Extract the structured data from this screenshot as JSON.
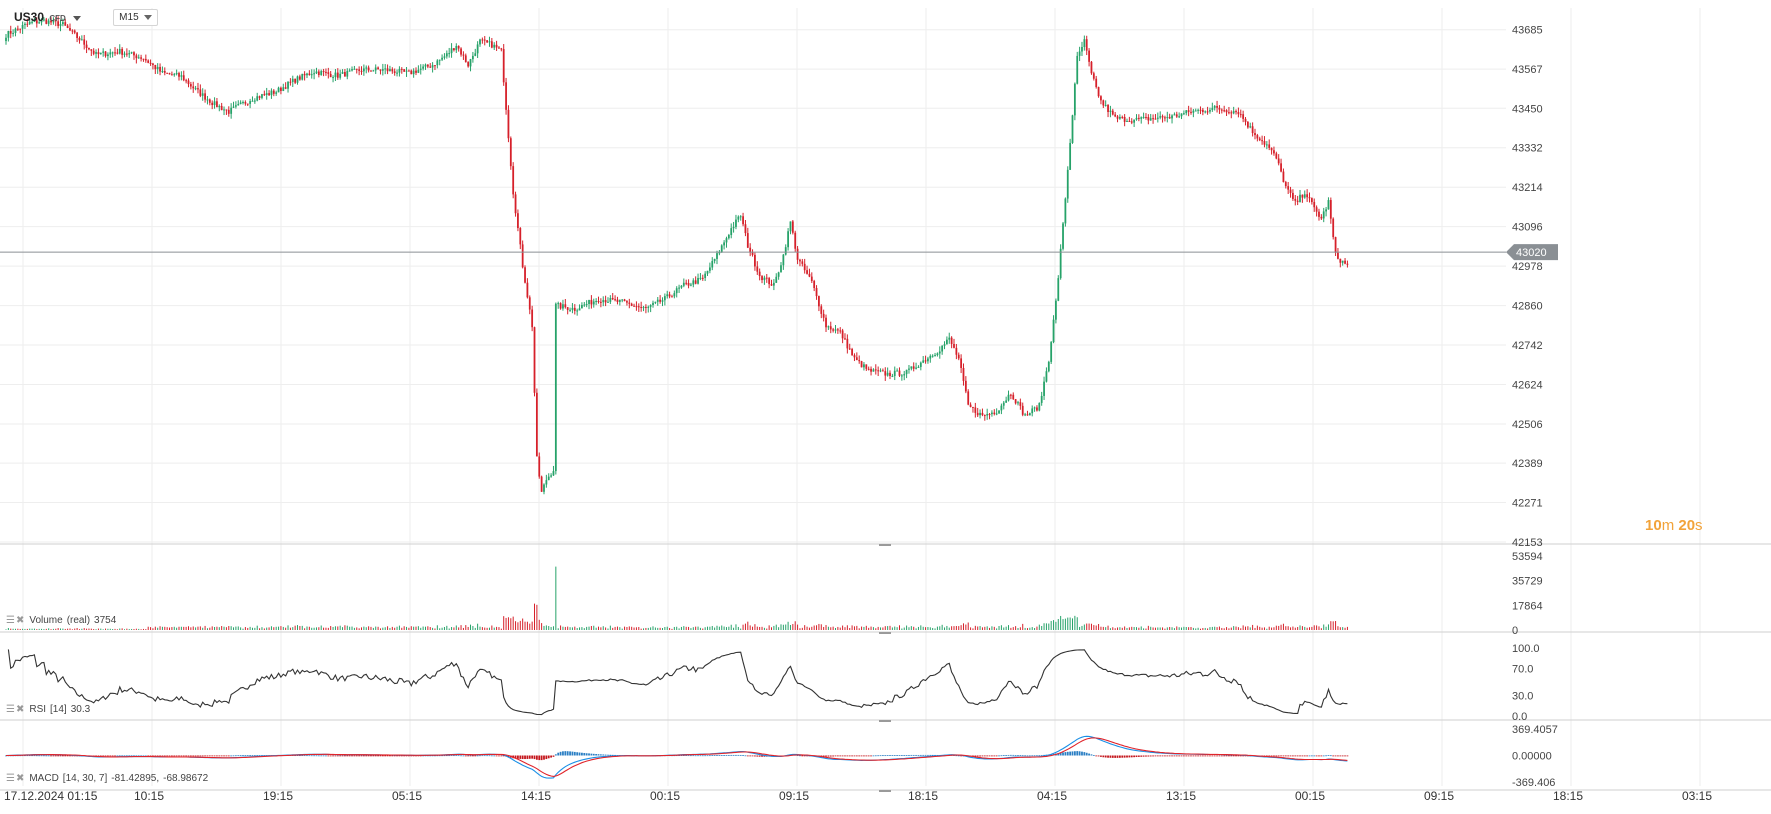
{
  "header": {
    "symbol": "US30",
    "symbol_type": "CFD",
    "timeframe": "M15"
  },
  "countdown": {
    "minutes": "10",
    "minutes_unit": "m",
    "seconds": "20",
    "seconds_unit": "s"
  },
  "panels": {
    "volume": {
      "name": "Volume",
      "param": "(real)",
      "value": "3754"
    },
    "rsi": {
      "name": "RSI",
      "param": "[14]",
      "value": "30.3"
    },
    "macd": {
      "name": "MACD",
      "param": "[14, 30, 7]",
      "value1": "-81.42895,",
      "value2": "-68.98672"
    }
  },
  "colors": {
    "up": "#26a269",
    "down": "#d6202a",
    "grid": "#eeeeee",
    "price_line": "#8a8f94",
    "price_tag": "#8a8f94",
    "rsi_line": "#333333",
    "macd_line": "#1a8fe6",
    "signal_line": "#e0242b",
    "hist_up": "#2b7fc4",
    "hist_down": "#c4161c"
  },
  "chart_data": {
    "type": "candlestick",
    "price_axis": {
      "ticks": [
        "43685",
        "43567",
        "43450",
        "43332",
        "43214",
        "43096",
        "42978",
        "42860",
        "42742",
        "42624",
        "42506",
        "42389",
        "42271",
        "42153"
      ],
      "ylim": [
        42153,
        43720
      ]
    },
    "current_price": 43020,
    "time_axis": {
      "labels": [
        "17.12.2024  01:15",
        "10:15",
        "19:15",
        "05:15",
        "14:15",
        "00:15",
        "09:15",
        "18:15",
        "04:15",
        "13:15",
        "00:15",
        "09:15",
        "18:15",
        "03:15"
      ]
    },
    "price_path_anchors": [
      [
        0,
        43670
      ],
      [
        10,
        43705
      ],
      [
        16,
        43712
      ],
      [
        24,
        43700
      ],
      [
        32,
        43650
      ],
      [
        38,
        43610
      ],
      [
        48,
        43620
      ],
      [
        58,
        43600
      ],
      [
        66,
        43555
      ],
      [
        74,
        43545
      ],
      [
        80,
        43505
      ],
      [
        88,
        43462
      ],
      [
        94,
        43440
      ],
      [
        104,
        43480
      ],
      [
        114,
        43500
      ],
      [
        122,
        43535
      ],
      [
        130,
        43560
      ],
      [
        140,
        43548
      ],
      [
        150,
        43565
      ],
      [
        160,
        43565
      ],
      [
        170,
        43555
      ],
      [
        180,
        43580
      ],
      [
        186,
        43610
      ],
      [
        190,
        43640
      ],
      [
        195,
        43580
      ],
      [
        200,
        43650
      ],
      [
        205,
        43640
      ],
      [
        209,
        43620
      ],
      [
        214,
        43200
      ],
      [
        218,
        42980
      ],
      [
        222,
        42800
      ],
      [
        224,
        42400
      ],
      [
        226,
        42300
      ],
      [
        228,
        42340
      ],
      [
        231,
        42370
      ],
      [
        232,
        42860
      ],
      [
        240,
        42850
      ],
      [
        250,
        42880
      ],
      [
        260,
        42870
      ],
      [
        270,
        42850
      ],
      [
        278,
        42880
      ],
      [
        286,
        42920
      ],
      [
        294,
        42940
      ],
      [
        300,
        43010
      ],
      [
        306,
        43090
      ],
      [
        310,
        43130
      ],
      [
        313,
        43040
      ],
      [
        318,
        42950
      ],
      [
        324,
        42920
      ],
      [
        328,
        43010
      ],
      [
        331,
        43110
      ],
      [
        334,
        43000
      ],
      [
        340,
        42930
      ],
      [
        346,
        42800
      ],
      [
        352,
        42780
      ],
      [
        358,
        42700
      ],
      [
        364,
        42665
      ],
      [
        372,
        42655
      ],
      [
        380,
        42660
      ],
      [
        388,
        42700
      ],
      [
        394,
        42730
      ],
      [
        398,
        42760
      ],
      [
        402,
        42700
      ],
      [
        406,
        42560
      ],
      [
        412,
        42530
      ],
      [
        418,
        42545
      ],
      [
        424,
        42600
      ],
      [
        430,
        42530
      ],
      [
        436,
        42560
      ],
      [
        440,
        42700
      ],
      [
        443,
        42870
      ],
      [
        446,
        43100
      ],
      [
        449,
        43350
      ],
      [
        452,
        43600
      ],
      [
        455,
        43650
      ],
      [
        458,
        43550
      ],
      [
        462,
        43470
      ],
      [
        468,
        43420
      ],
      [
        476,
        43415
      ],
      [
        484,
        43420
      ],
      [
        492,
        43425
      ],
      [
        500,
        43440
      ],
      [
        510,
        43450
      ],
      [
        520,
        43440
      ],
      [
        526,
        43380
      ],
      [
        532,
        43340
      ],
      [
        536,
        43300
      ],
      [
        540,
        43215
      ],
      [
        544,
        43165
      ],
      [
        548,
        43200
      ],
      [
        552,
        43150
      ],
      [
        555,
        43120
      ],
      [
        558,
        43170
      ],
      [
        561,
        43010
      ],
      [
        564,
        42990
      ],
      [
        566,
        42980
      ]
    ],
    "volume": {
      "ticks": [
        "53594",
        "35729",
        "17864",
        "0"
      ],
      "ylim": [
        0,
        53594
      ]
    },
    "rsi": {
      "ticks": [
        "100.0",
        "70.0",
        "30.0",
        "0.0"
      ],
      "ylim": [
        0,
        100
      ],
      "last": 30.3
    },
    "macd": {
      "ticks": [
        "369.4057",
        "0.00000",
        "-369.406"
      ],
      "ylim": [
        -369.406,
        369.4057
      ]
    }
  }
}
